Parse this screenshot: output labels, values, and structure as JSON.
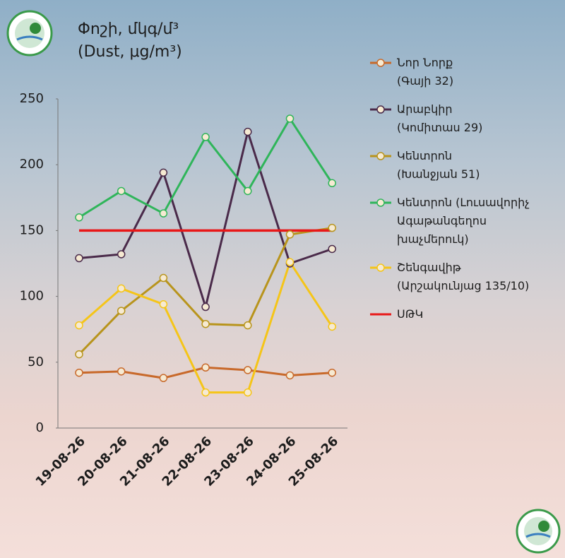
{
  "chart_data": {
    "type": "line",
    "title": "Փոշի, մկգ/մ³",
    "subtitle": "(Dust, μg/m³)",
    "categories": [
      "19-08-26",
      "20-08-26",
      "21-08-26",
      "22-08-26",
      "23-08-26",
      "24-08-26",
      "25-08-26"
    ],
    "series": [
      {
        "name": "Նոր Նորք\n(Գայի 32)",
        "color": "#c8692a",
        "marker": true,
        "values": [
          42,
          43,
          38,
          46,
          44,
          40,
          42
        ]
      },
      {
        "name": "Արաբկիր\n(Կոմիտաս 29)",
        "color": "#4a2a4a",
        "marker": true,
        "values": [
          129,
          132,
          194,
          92,
          225,
          125,
          136
        ]
      },
      {
        "name": "Կենտրոն\n(Խանջյան 51)",
        "color": "#b8941c",
        "marker": true,
        "values": [
          56,
          89,
          114,
          79,
          78,
          147,
          152
        ]
      },
      {
        "name": "Կենտրոն (Լուսավորիչ\nԱգաթանգեղոս\nխաչմերուկ)",
        "color": "#2fb55a",
        "marker": true,
        "values": [
          160,
          180,
          163,
          221,
          180,
          235,
          186
        ]
      },
      {
        "name": "Շենգավիթ\n(Արշակունյաց 135/10)",
        "color": "#f5c518",
        "marker": true,
        "values": [
          78,
          106,
          94,
          27,
          27,
          126,
          77
        ]
      },
      {
        "name": "ՍԹԿ",
        "color": "#e81818",
        "marker": false,
        "values": [
          150,
          150,
          150,
          150,
          150,
          150,
          150
        ]
      }
    ],
    "ylim": [
      0,
      250
    ],
    "yticks": [
      0,
      50,
      100,
      150,
      200,
      250
    ],
    "grid": false
  }
}
